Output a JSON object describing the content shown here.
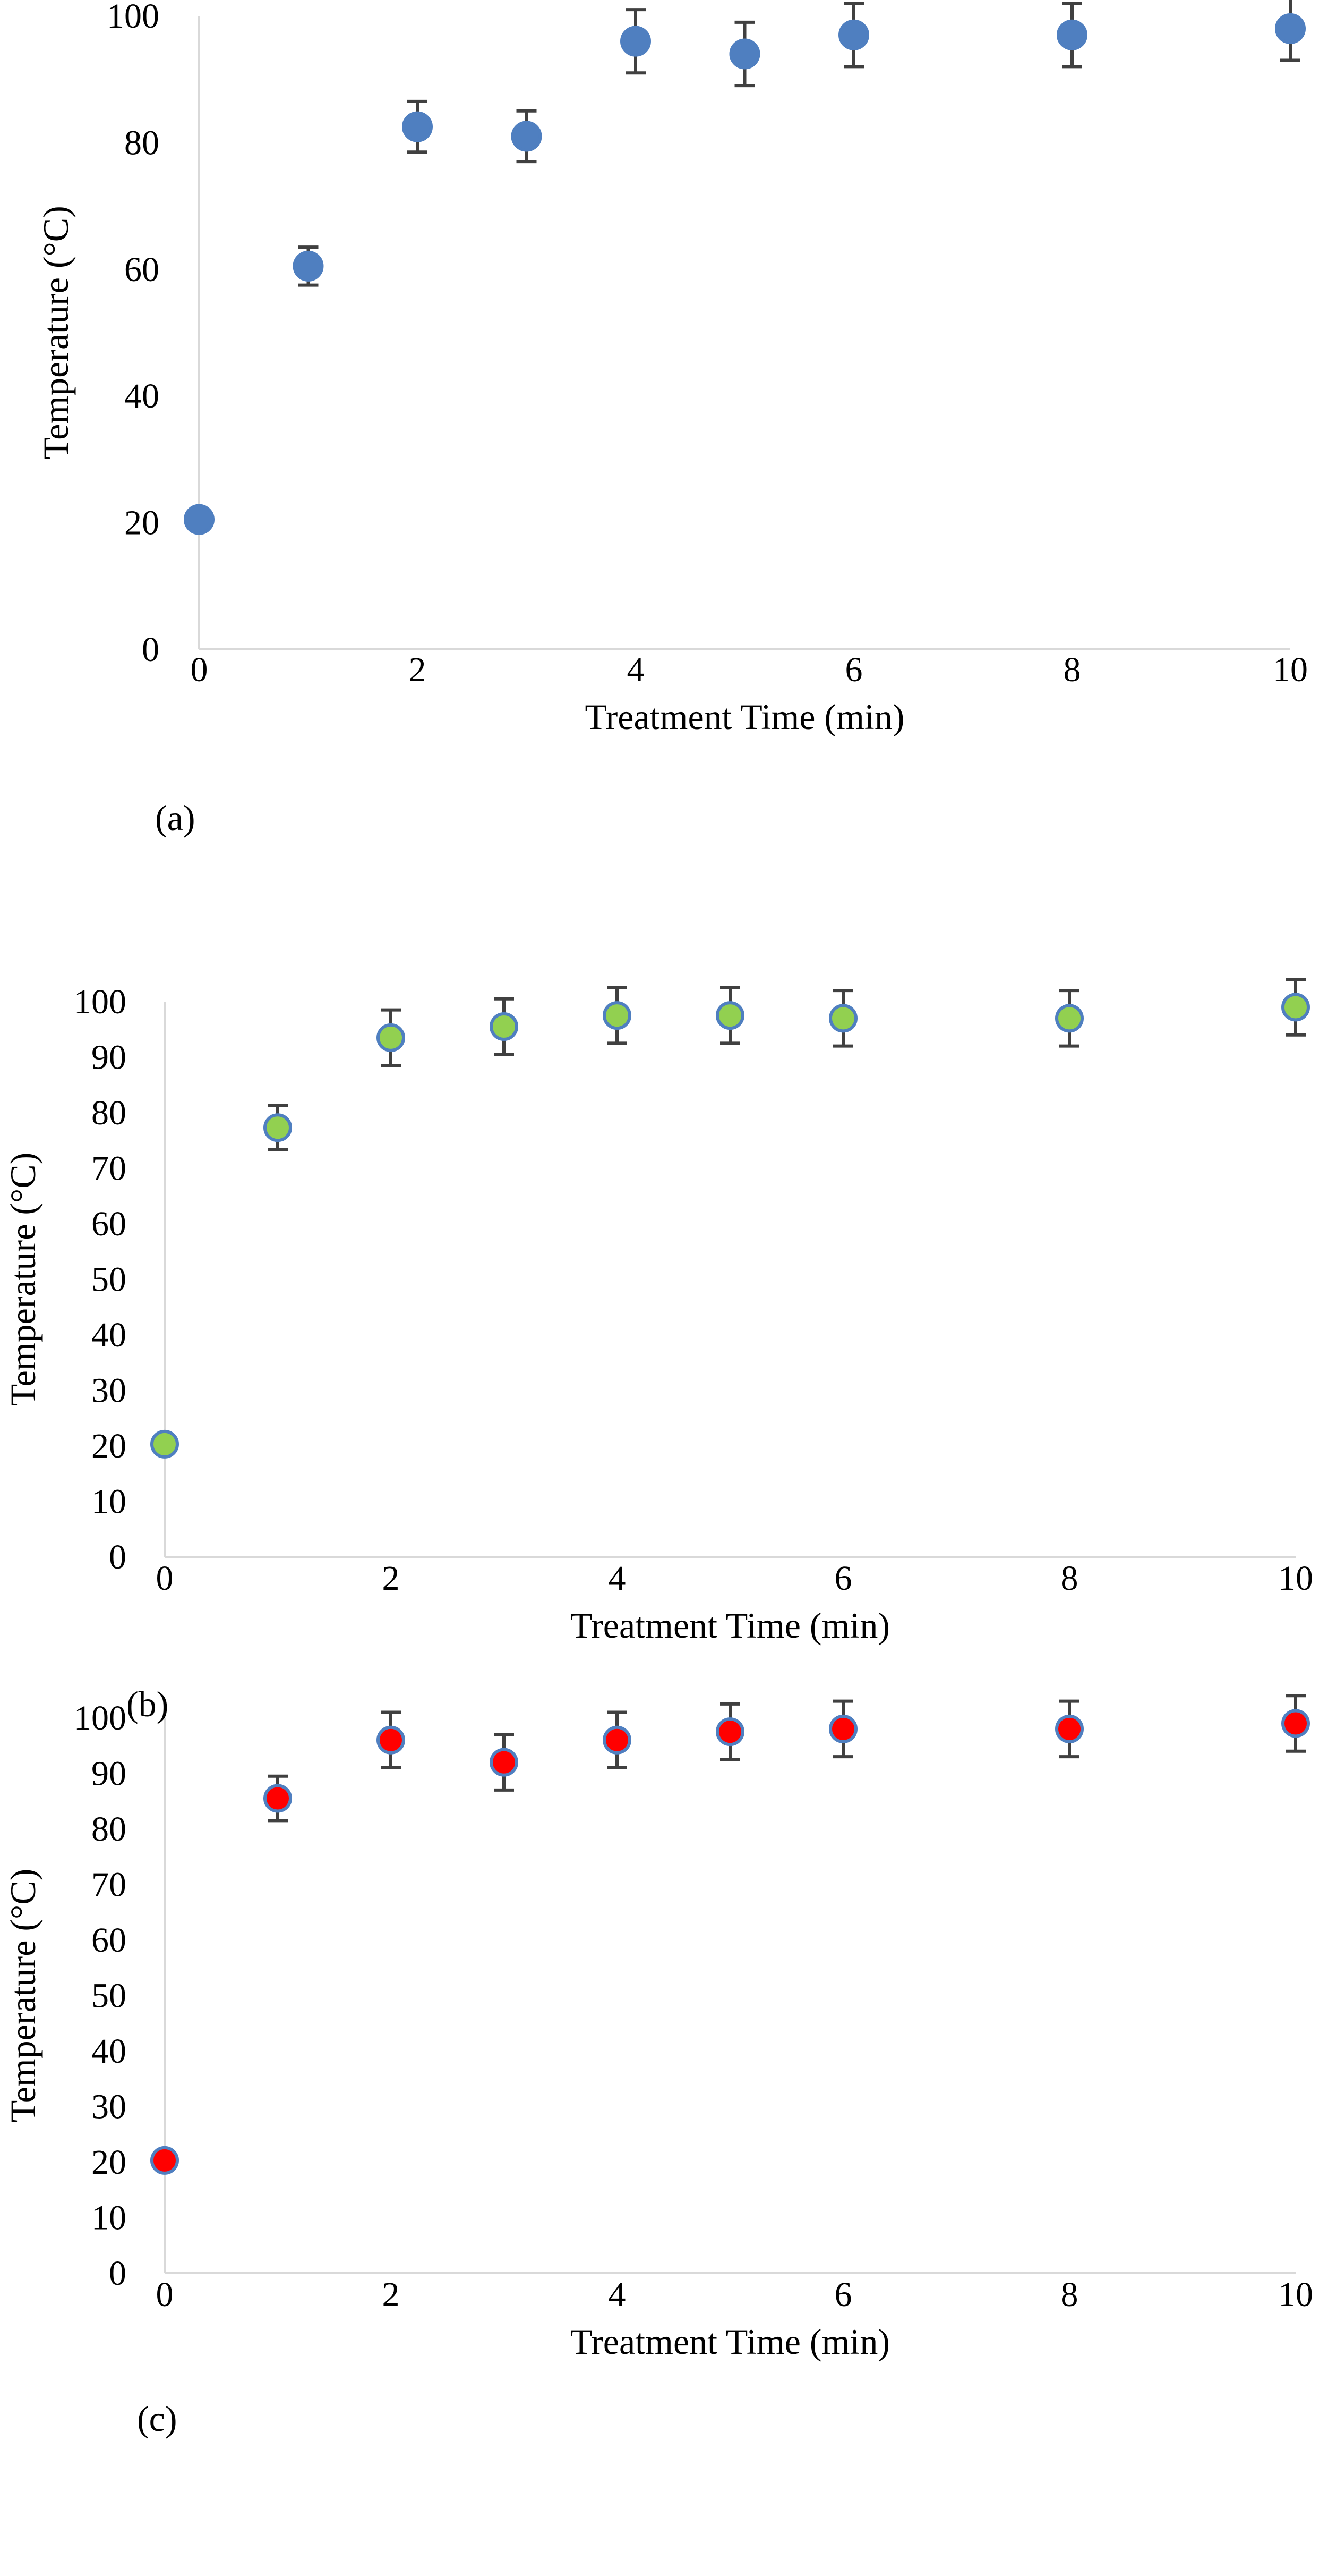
{
  "chart_data": [
    {
      "type": "scatter",
      "panel_label": "(a)",
      "title": "",
      "xlabel": "Treatment Time (min)",
      "ylabel": "Temperature (°C)",
      "xlim": [
        0,
        10
      ],
      "ylim": [
        0,
        100
      ],
      "xticks": [
        0,
        2,
        4,
        6,
        8,
        10
      ],
      "yticks": [
        0,
        20,
        40,
        60,
        80,
        100
      ],
      "grid": false,
      "legend": null,
      "marker_color": "#4f7fc0",
      "marker_edge": "#4f7fc0",
      "error_bar_color": "#404040",
      "series": [
        {
          "name": "Temperature",
          "x": [
            0,
            1,
            2,
            3,
            4,
            5,
            6,
            8,
            10
          ],
          "y": [
            20.5,
            60.5,
            82.5,
            81,
            96,
            94,
            97,
            97,
            98
          ],
          "error": [
            0,
            3,
            4,
            4,
            5,
            5,
            5,
            5,
            5
          ]
        }
      ]
    },
    {
      "type": "scatter",
      "panel_label": "(b)",
      "title": "",
      "xlabel": "Treatment Time (min)",
      "ylabel": "Temperature (°C)",
      "xlim": [
        0,
        10
      ],
      "ylim": [
        0,
        100
      ],
      "xticks": [
        0,
        2,
        4,
        6,
        8,
        10
      ],
      "yticks": [
        0,
        10,
        20,
        30,
        40,
        50,
        60,
        70,
        80,
        90,
        100
      ],
      "grid": false,
      "legend": null,
      "marker_color": "#92d050",
      "marker_edge": "#4f7fc0",
      "error_bar_color": "#404040",
      "series": [
        {
          "name": "Temperature",
          "x": [
            0,
            1,
            2,
            3,
            4,
            5,
            6,
            8,
            10
          ],
          "y": [
            20.3,
            77.3,
            93.5,
            95.5,
            97.5,
            97.5,
            97,
            97,
            99
          ],
          "error": [
            0,
            4,
            5,
            5,
            5,
            5,
            5,
            5,
            5
          ]
        }
      ]
    },
    {
      "type": "scatter",
      "panel_label": "(c)",
      "title": "",
      "xlabel": "Treatment Time (min)",
      "ylabel": "Temperature (°C)",
      "xlim": [
        0,
        10
      ],
      "ylim": [
        0,
        100
      ],
      "xticks": [
        0,
        2,
        4,
        6,
        8,
        10
      ],
      "yticks": [
        0,
        10,
        20,
        30,
        40,
        50,
        60,
        70,
        80,
        90,
        100
      ],
      "grid": false,
      "legend": null,
      "marker_color": "#ff0000",
      "marker_edge": "#4f7fc0",
      "error_bar_color": "#404040",
      "series": [
        {
          "name": "Temperature",
          "x": [
            0,
            1,
            2,
            3,
            4,
            5,
            6,
            8,
            10
          ],
          "y": [
            20.3,
            85.5,
            96,
            92,
            96,
            97.5,
            98,
            98,
            99
          ],
          "error": [
            0,
            4,
            5,
            5,
            5,
            5,
            5,
            5,
            5
          ]
        }
      ]
    }
  ]
}
